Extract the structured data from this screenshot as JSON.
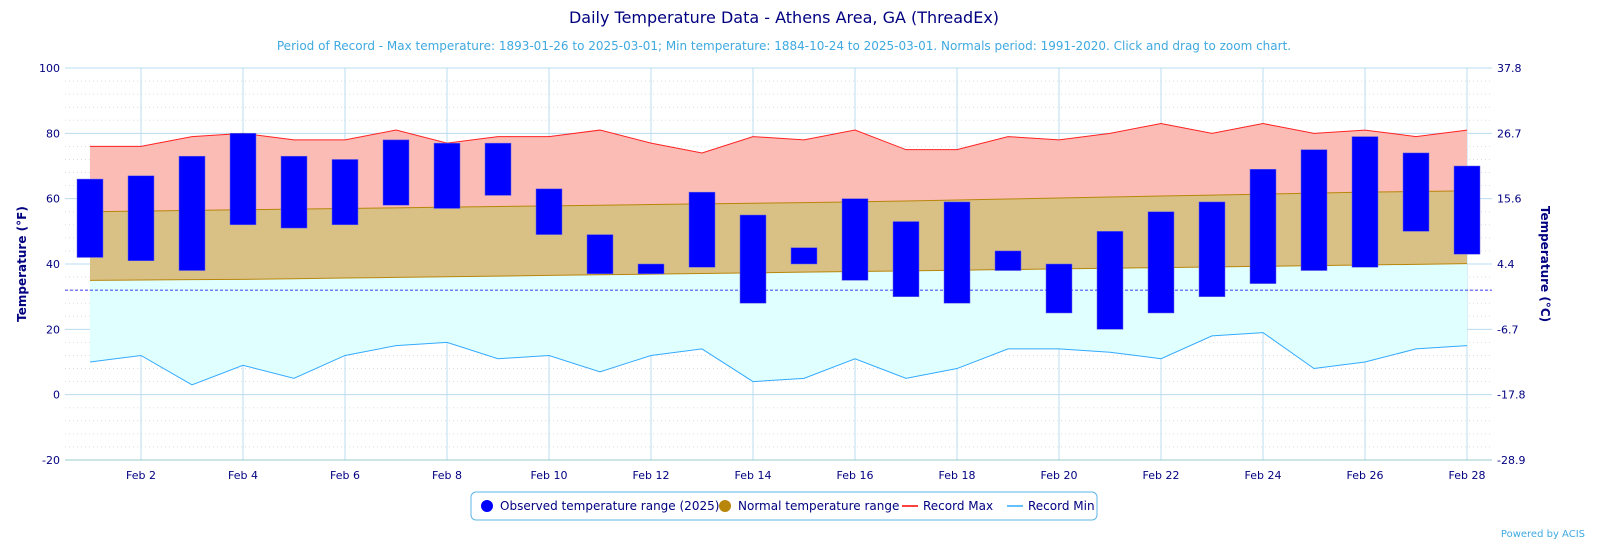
{
  "chart_data": {
    "type": "bar",
    "title": "Daily Temperature Data - Athens Area, GA (ThreadEx)",
    "subtitle": "Period of Record - Max temperature: 1893-01-26 to 2025-03-01; Min temperature: 1884-10-24 to 2025-03-01. Normals period: 1991-2020. Click and drag to zoom chart.",
    "ylabel": "Temperature (°F)",
    "ylabel_right": "Temperature (°C)",
    "ylim": [
      -20,
      100
    ],
    "yticks": [
      "-20",
      "0",
      "20",
      "40",
      "60",
      "80",
      "100"
    ],
    "yticks_right": [
      "-28.9",
      "-17.8",
      "-6.7",
      "4.4",
      "15.6",
      "26.7",
      "37.8"
    ],
    "xtick_labels": [
      "Feb 2",
      "Feb 4",
      "Feb 6",
      "Feb 8",
      "Feb 10",
      "Feb 12",
      "Feb 14",
      "Feb 16",
      "Feb 18",
      "Feb 20",
      "Feb 22",
      "Feb 24",
      "Feb 26",
      "Feb 28"
    ],
    "days": [
      1,
      2,
      3,
      4,
      5,
      6,
      7,
      8,
      9,
      10,
      11,
      12,
      13,
      14,
      15,
      16,
      17,
      18,
      19,
      20,
      21,
      22,
      23,
      24,
      25,
      26,
      27,
      28
    ],
    "freezing_line": 32,
    "series": [
      {
        "name": "Observed temperature range (2025)",
        "color": "#0000ff",
        "high": [
          66,
          67,
          73,
          80,
          73,
          72,
          78,
          77,
          77,
          63,
          49,
          40,
          62,
          55,
          45,
          60,
          53,
          59,
          44,
          40,
          50,
          56,
          59,
          69,
          75,
          79,
          74,
          70
        ],
        "low": [
          42,
          41,
          38,
          52,
          51,
          52,
          58,
          57,
          61,
          49,
          37,
          37,
          39,
          28,
          40,
          35,
          30,
          28,
          38,
          25,
          20,
          25,
          30,
          34,
          38,
          39,
          50,
          43
        ]
      },
      {
        "name": "Normal temperature range",
        "color": "#b8860b",
        "high": [
          56,
          56.2,
          56.4,
          56.6,
          56.8,
          57,
          57.2,
          57.4,
          57.6,
          57.8,
          58,
          58.2,
          58.4,
          58.6,
          58.8,
          59,
          59.3,
          59.6,
          59.9,
          60.2,
          60.5,
          60.8,
          61.1,
          61.4,
          61.7,
          62,
          62.2,
          62.4
        ],
        "low": [
          35,
          35.1,
          35.2,
          35.3,
          35.5,
          35.7,
          35.9,
          36.1,
          36.3,
          36.5,
          36.7,
          36.9,
          37.1,
          37.3,
          37.5,
          37.7,
          37.9,
          38.1,
          38.3,
          38.5,
          38.7,
          38.9,
          39.1,
          39.3,
          39.5,
          39.7,
          39.9,
          40.1
        ]
      },
      {
        "name": "Record Max",
        "color": "#ff0000",
        "values": [
          76,
          76,
          79,
          80,
          78,
          78,
          81,
          77,
          79,
          79,
          81,
          77,
          74,
          79,
          78,
          81,
          75,
          75,
          79,
          78,
          80,
          83,
          80,
          83,
          80,
          81,
          79,
          81
        ]
      },
      {
        "name": "Record Min",
        "color": "#33aaff",
        "values": [
          10,
          12,
          3,
          9,
          5,
          12,
          15,
          16,
          11,
          12,
          7,
          12,
          14,
          4,
          5,
          11,
          5,
          8,
          14,
          14,
          13,
          11,
          18,
          19,
          8,
          10,
          14,
          15
        ]
      }
    ],
    "legend_position": "bottom-center",
    "credit": "Powered by ACIS"
  }
}
